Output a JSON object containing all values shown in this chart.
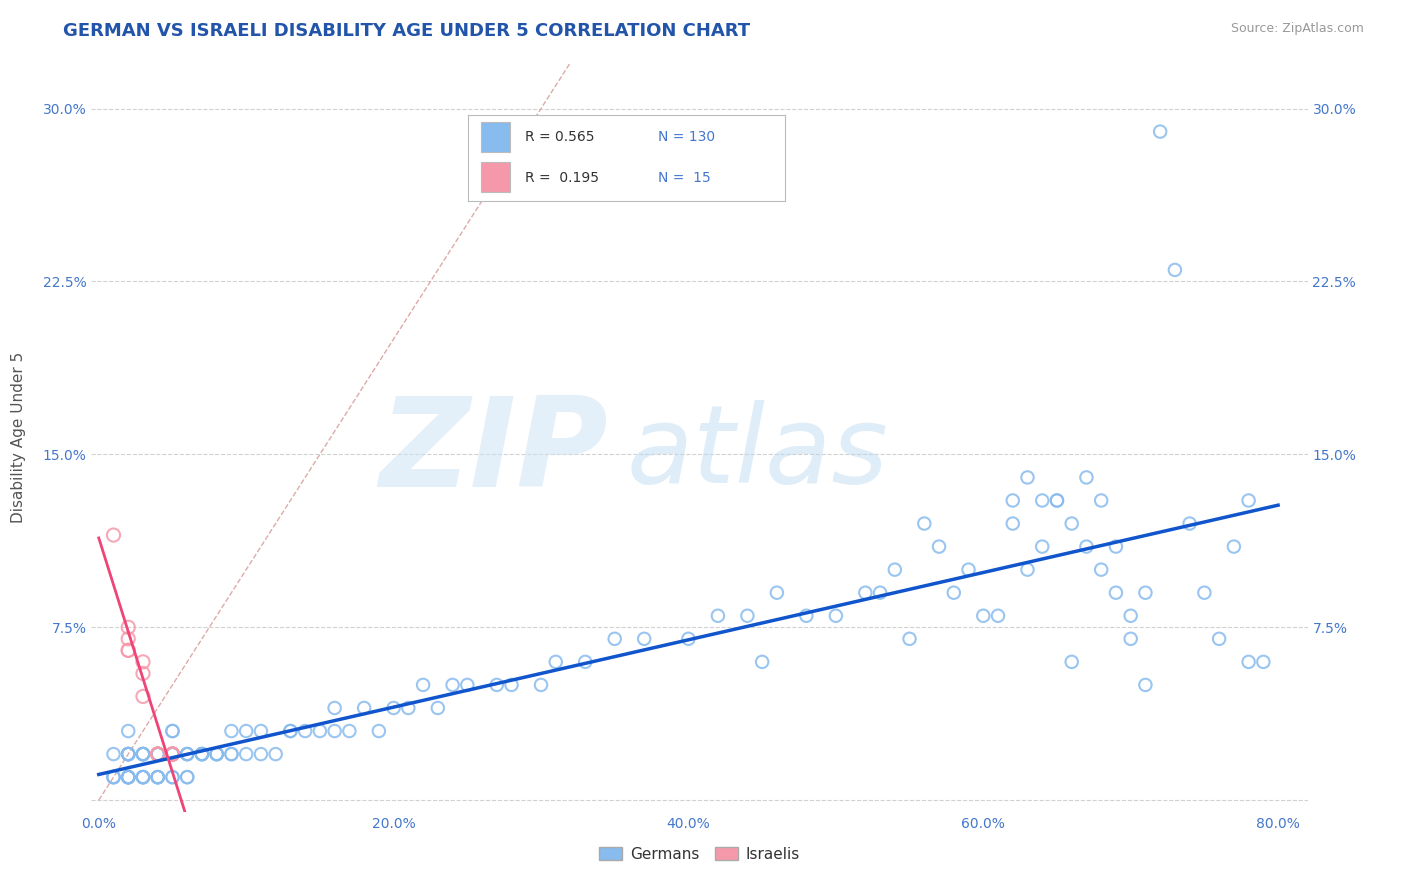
{
  "title": "GERMAN VS ISRAELI DISABILITY AGE UNDER 5 CORRELATION CHART",
  "source": "Source: ZipAtlas.com",
  "ylabel": "Disability Age Under 5",
  "xlim": [
    -0.005,
    0.82
  ],
  "ylim": [
    -0.005,
    0.32
  ],
  "xticks": [
    0.0,
    0.2,
    0.4,
    0.6,
    0.8
  ],
  "xticklabels": [
    "0.0%",
    "20.0%",
    "40.0%",
    "60.0%",
    "80.0%"
  ],
  "yticks": [
    0.0,
    0.075,
    0.15,
    0.225,
    0.3
  ],
  "yticklabels": [
    "",
    "7.5%",
    "15.0%",
    "22.5%",
    "30.0%"
  ],
  "german_color": "#88bbee",
  "israeli_color": "#f599aa",
  "german_line_color": "#1155cc",
  "israeli_line_color": "#ee4477",
  "german_R": 0.565,
  "german_N": 130,
  "israeli_R": 0.195,
  "israeli_N": 15,
  "title_color": "#2255aa",
  "source_color": "#999999",
  "bg_color": "#ffffff",
  "grid_color": "#cccccc",
  "tick_label_color": "#4477cc",
  "diag_color": "#ddaaaa",
  "german_x": [
    0.01,
    0.01,
    0.01,
    0.01,
    0.02,
    0.02,
    0.02,
    0.02,
    0.02,
    0.02,
    0.02,
    0.02,
    0.02,
    0.02,
    0.02,
    0.02,
    0.02,
    0.03,
    0.03,
    0.03,
    0.03,
    0.03,
    0.03,
    0.03,
    0.03,
    0.03,
    0.04,
    0.04,
    0.04,
    0.04,
    0.04,
    0.04,
    0.04,
    0.04,
    0.05,
    0.05,
    0.05,
    0.05,
    0.05,
    0.05,
    0.05,
    0.06,
    0.06,
    0.06,
    0.06,
    0.06,
    0.07,
    0.07,
    0.07,
    0.07,
    0.08,
    0.08,
    0.08,
    0.08,
    0.09,
    0.09,
    0.09,
    0.1,
    0.1,
    0.11,
    0.11,
    0.12,
    0.13,
    0.13,
    0.14,
    0.15,
    0.16,
    0.16,
    0.17,
    0.18,
    0.19,
    0.2,
    0.21,
    0.22,
    0.23,
    0.24,
    0.25,
    0.27,
    0.28,
    0.3,
    0.31,
    0.33,
    0.35,
    0.37,
    0.4,
    0.42,
    0.44,
    0.45,
    0.46,
    0.48,
    0.5,
    0.52,
    0.53,
    0.54,
    0.55,
    0.56,
    0.57,
    0.58,
    0.59,
    0.6,
    0.61,
    0.62,
    0.63,
    0.64,
    0.65,
    0.66,
    0.67,
    0.68,
    0.69,
    0.7,
    0.71,
    0.72,
    0.73,
    0.74,
    0.75,
    0.76,
    0.77,
    0.78,
    0.78,
    0.79,
    0.62,
    0.63,
    0.64,
    0.65,
    0.66,
    0.67,
    0.68,
    0.69,
    0.7,
    0.71
  ],
  "german_y": [
    0.01,
    0.01,
    0.01,
    0.02,
    0.01,
    0.01,
    0.01,
    0.01,
    0.01,
    0.01,
    0.02,
    0.02,
    0.02,
    0.02,
    0.02,
    0.02,
    0.03,
    0.01,
    0.01,
    0.01,
    0.01,
    0.02,
    0.02,
    0.02,
    0.02,
    0.02,
    0.01,
    0.01,
    0.01,
    0.01,
    0.02,
    0.02,
    0.02,
    0.02,
    0.01,
    0.01,
    0.02,
    0.02,
    0.02,
    0.03,
    0.03,
    0.01,
    0.01,
    0.02,
    0.02,
    0.02,
    0.02,
    0.02,
    0.02,
    0.02,
    0.02,
    0.02,
    0.02,
    0.02,
    0.02,
    0.02,
    0.03,
    0.02,
    0.03,
    0.02,
    0.03,
    0.02,
    0.03,
    0.03,
    0.03,
    0.03,
    0.03,
    0.04,
    0.03,
    0.04,
    0.03,
    0.04,
    0.04,
    0.05,
    0.04,
    0.05,
    0.05,
    0.05,
    0.05,
    0.05,
    0.06,
    0.06,
    0.07,
    0.07,
    0.07,
    0.08,
    0.08,
    0.06,
    0.09,
    0.08,
    0.08,
    0.09,
    0.09,
    0.1,
    0.07,
    0.12,
    0.11,
    0.09,
    0.1,
    0.08,
    0.08,
    0.12,
    0.1,
    0.11,
    0.13,
    0.06,
    0.11,
    0.1,
    0.09,
    0.08,
    0.09,
    0.29,
    0.23,
    0.12,
    0.09,
    0.07,
    0.11,
    0.06,
    0.13,
    0.06,
    0.13,
    0.14,
    0.13,
    0.13,
    0.12,
    0.14,
    0.13,
    0.11,
    0.07,
    0.05
  ],
  "israeli_x": [
    0.01,
    0.02,
    0.02,
    0.02,
    0.02,
    0.03,
    0.03,
    0.03,
    0.04,
    0.04,
    0.04,
    0.05,
    0.05,
    0.05,
    0.05
  ],
  "israeli_y": [
    0.115,
    0.07,
    0.075,
    0.065,
    0.065,
    0.06,
    0.055,
    0.045,
    0.02,
    0.02,
    0.02,
    0.02,
    0.02,
    0.02,
    0.02
  ]
}
